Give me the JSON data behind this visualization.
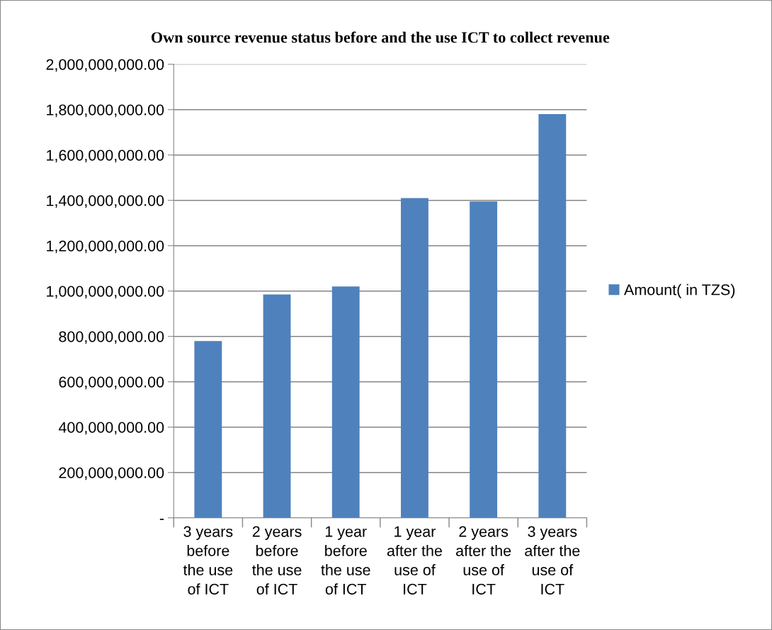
{
  "chart_data": {
    "type": "bar",
    "title": "Own source revenue status before and the use ICT to collect revenue",
    "categories": [
      "3 years\nbefore\nthe use\nof ICT",
      "2 years\nbefore\nthe use\nof ICT",
      "1 year\nbefore\nthe use\nof ICT",
      "1 year\nafter the\nuse of\nICT",
      "2 years\nafter the\nuse of\nICT",
      "3 years\nafter the\nuse of\nICT"
    ],
    "series": [
      {
        "name": "Amount( in TZS)",
        "color": "#4f81bd",
        "values": [
          780000000,
          985000000,
          1020000000,
          1410000000,
          1395000000,
          1780000000
        ]
      }
    ],
    "ylim": [
      0,
      2000000000
    ],
    "yticks": [
      {
        "value": 0,
        "label": "-"
      },
      {
        "value": 200000000,
        "label": "200,000,000.00"
      },
      {
        "value": 400000000,
        "label": "400,000,000.00"
      },
      {
        "value": 600000000,
        "label": "600,000,000.00"
      },
      {
        "value": 800000000,
        "label": "800,000,000.00"
      },
      {
        "value": 1000000000,
        "label": "1,000,000,000.00"
      },
      {
        "value": 1200000000,
        "label": "1,200,000,000.00"
      },
      {
        "value": 1400000000,
        "label": "1,400,000,000.00"
      },
      {
        "value": 1600000000,
        "label": "1,600,000,000.00"
      },
      {
        "value": 1800000000,
        "label": "1,800,000,000.00"
      },
      {
        "value": 2000000000,
        "label": "2,000,000,000.00"
      }
    ],
    "grid": "y",
    "legend": "right"
  }
}
